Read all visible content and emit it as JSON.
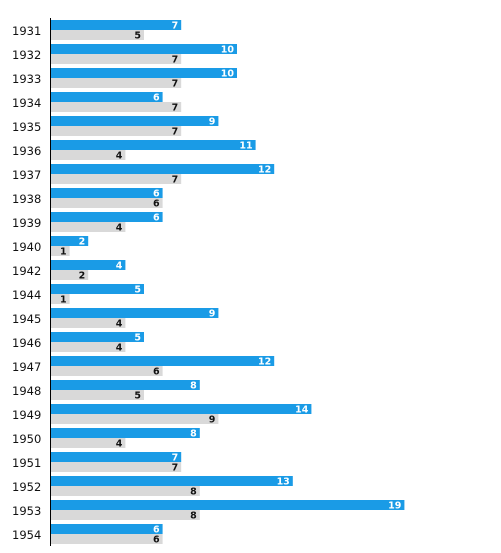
{
  "chart_data": {
    "type": "bar",
    "orientation": "horizontal",
    "categories": [
      "1931",
      "1932",
      "1933",
      "1934",
      "1935",
      "1936",
      "1937",
      "1938",
      "1939",
      "1940",
      "1942",
      "1944",
      "1945",
      "1946",
      "1947",
      "1948",
      "1949",
      "1950",
      "1951",
      "1952",
      "1953",
      "1954"
    ],
    "series": [
      {
        "color": "#1a9be6",
        "values": [
          7,
          10,
          10,
          6,
          9,
          11,
          12,
          6,
          6,
          2,
          4,
          5,
          9,
          5,
          12,
          8,
          14,
          8,
          7,
          13,
          19,
          6
        ]
      },
      {
        "color": "#d9d9d9",
        "values": [
          5,
          7,
          7,
          7,
          7,
          4,
          7,
          6,
          4,
          1,
          2,
          1,
          4,
          4,
          6,
          5,
          9,
          4,
          7,
          8,
          8,
          6
        ]
      }
    ],
    "title": "",
    "xlabel": "",
    "ylabel": "",
    "xlim": [
      0,
      20
    ],
    "grid": false,
    "legend": "none",
    "data_labels": true
  }
}
